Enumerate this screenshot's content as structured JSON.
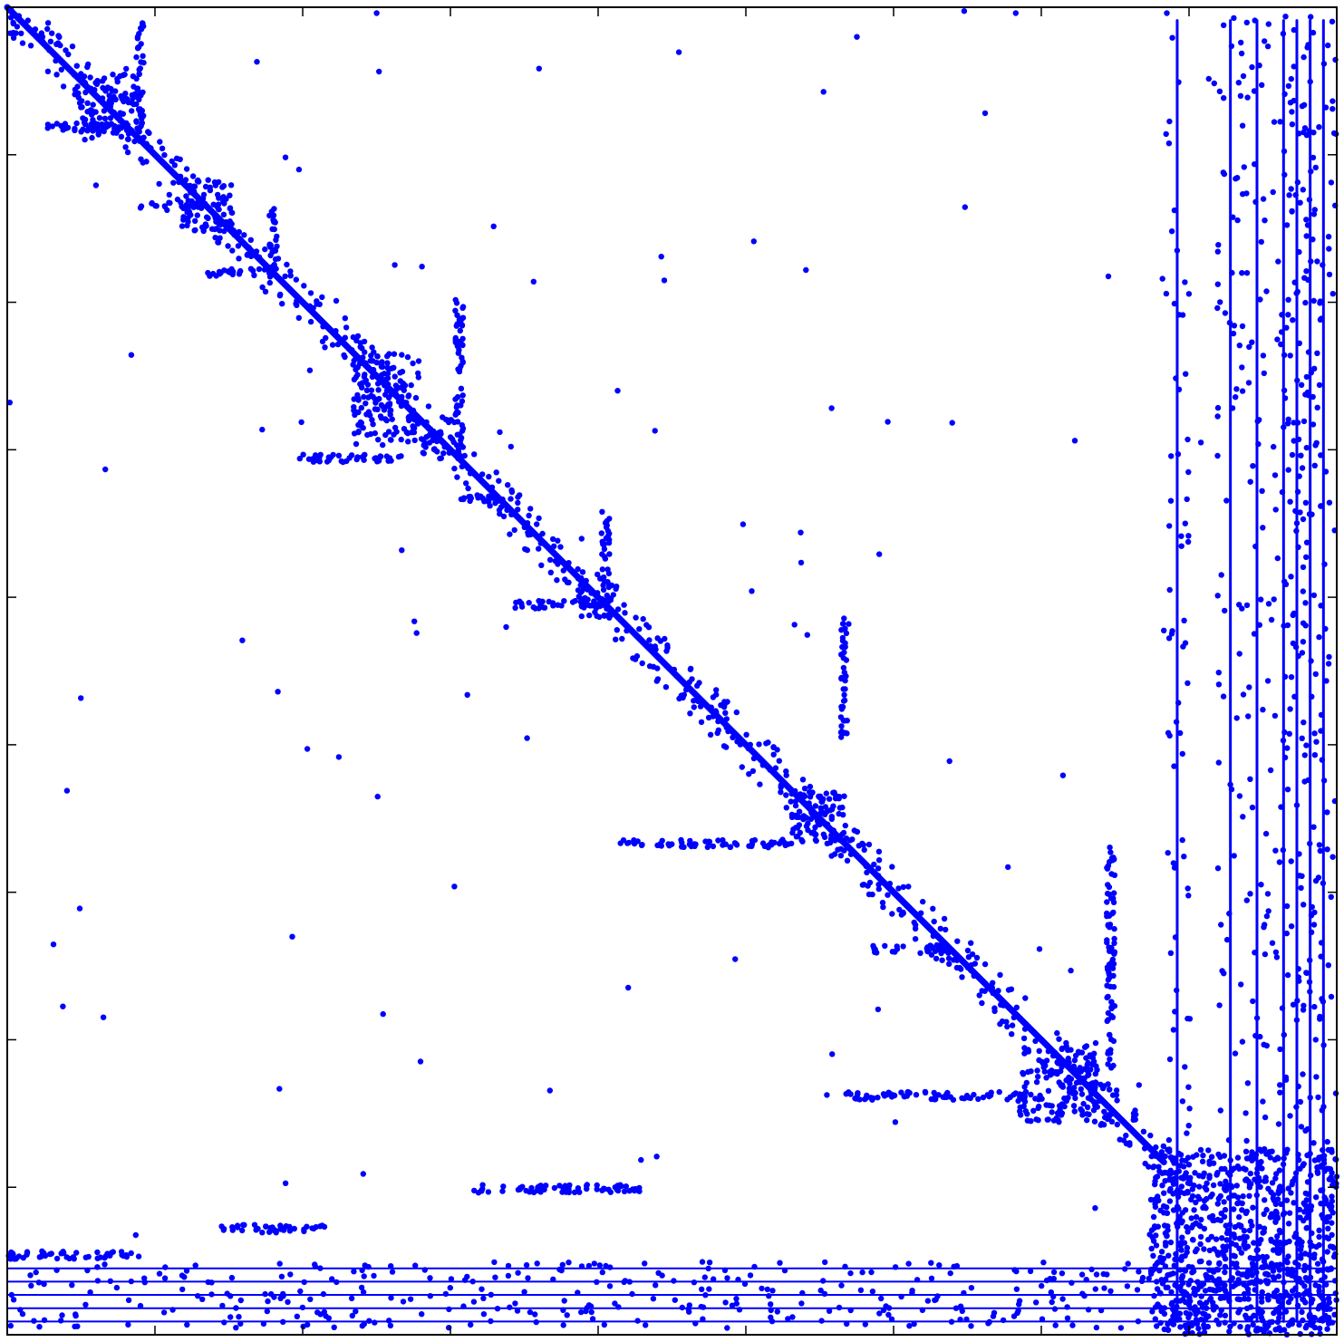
{
  "chart_data": {
    "type": "scatter",
    "subtype": "sparsity-pattern",
    "title": "",
    "xlabel": "",
    "ylabel": "",
    "tick_labels_shown": false,
    "ticks_per_axis": 8,
    "xlim": [
      0,
      1
    ],
    "ylim": [
      0,
      1
    ],
    "marker_color": "#0000ff",
    "frame_color": "#000000",
    "background": "#ffffff",
    "structure": {
      "main_diagonal": {
        "from": [
          0.0,
          0.0
        ],
        "to": [
          0.87,
          0.87
        ]
      },
      "diagonal_blocks": [
        {
          "x": [
            0.05,
            0.1
          ],
          "y": [
            0.05,
            0.1
          ]
        },
        {
          "x": [
            0.13,
            0.17
          ],
          "y": [
            0.13,
            0.17
          ]
        },
        {
          "x": [
            0.26,
            0.31
          ],
          "y": [
            0.26,
            0.33
          ]
        },
        {
          "x": [
            0.31,
            0.34
          ],
          "y": [
            0.31,
            0.34
          ]
        },
        {
          "x": [
            0.43,
            0.46
          ],
          "y": [
            0.43,
            0.46
          ]
        },
        {
          "x": [
            0.59,
            0.63
          ],
          "y": [
            0.59,
            0.63
          ]
        },
        {
          "x": [
            0.76,
            0.82
          ],
          "y": [
            0.78,
            0.84
          ]
        },
        {
          "x": [
            0.86,
            1.0
          ],
          "y": [
            0.86,
            1.0
          ]
        }
      ],
      "row_spurs": [
        {
          "y": 0.09,
          "x": [
            0.03,
            0.09
          ]
        },
        {
          "y": 0.15,
          "x": [
            0.1,
            0.15
          ]
        },
        {
          "y": 0.2,
          "x": [
            0.15,
            0.2
          ]
        },
        {
          "y": 0.34,
          "x": [
            0.22,
            0.3
          ]
        },
        {
          "y": 0.37,
          "x": [
            0.34,
            0.38
          ]
        },
        {
          "y": 0.45,
          "x": [
            0.38,
            0.45
          ]
        },
        {
          "y": 0.63,
          "x": [
            0.46,
            0.59
          ]
        },
        {
          "y": 0.71,
          "x": [
            0.65,
            0.71
          ]
        },
        {
          "y": 0.82,
          "x": [
            0.63,
            0.78
          ]
        },
        {
          "y": 0.89,
          "x": [
            0.35,
            0.48
          ]
        },
        {
          "y": 0.92,
          "x": [
            0.16,
            0.24
          ]
        },
        {
          "y": 0.94,
          "x": [
            0.0,
            0.1
          ]
        }
      ],
      "column_spurs": [
        {
          "x": 0.1,
          "y": [
            0.01,
            0.09
          ]
        },
        {
          "x": 0.2,
          "y": [
            0.15,
            0.2
          ]
        },
        {
          "x": 0.34,
          "y": [
            0.22,
            0.34
          ]
        },
        {
          "x": 0.45,
          "y": [
            0.38,
            0.45
          ]
        },
        {
          "x": 0.63,
          "y": [
            0.46,
            0.55
          ]
        },
        {
          "x": 0.83,
          "y": [
            0.63,
            0.8
          ]
        }
      ],
      "dense_columns_right": [
        0.88,
        0.92,
        0.94,
        0.96,
        0.97,
        0.98,
        0.99
      ],
      "dense_rows_bottom": [
        0.95,
        0.96,
        0.97,
        0.98,
        0.99
      ]
    }
  }
}
